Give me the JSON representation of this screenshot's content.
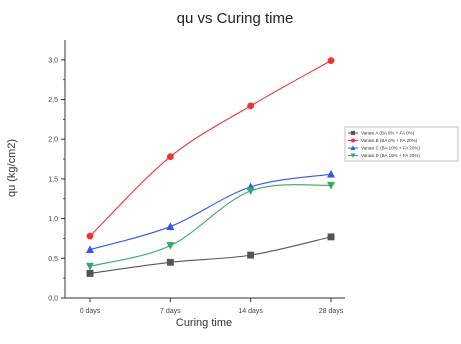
{
  "chart_data": {
    "type": "line",
    "title": "qu vs Curing time",
    "xlabel": "Curing time",
    "ylabel": "qu (kg/cm2)",
    "categories": [
      "0 days",
      "7 days",
      "14 days",
      "28 days"
    ],
    "ylim": [
      0,
      3.25
    ],
    "yticks": [
      "0,0",
      "0,5",
      "1,0",
      "1,5",
      "2,0",
      "2,5",
      "3,0"
    ],
    "ytick_values": [
      0,
      0.5,
      1.0,
      1.5,
      2.0,
      2.5,
      3.0
    ],
    "grid": false,
    "legend_position": "right",
    "series": [
      {
        "name": "Variasi A (BA 0% + FA 0%)",
        "values": [
          0.31,
          0.45,
          0.54,
          0.77
        ],
        "color": "#555555",
        "marker": "square"
      },
      {
        "name": "Variasi B (BA 0% + FA 20%)",
        "values": [
          0.78,
          1.78,
          2.42,
          2.99
        ],
        "color": "#ee3333",
        "marker": "circle"
      },
      {
        "name": "Variasi C (BA 10% + FA 20%)",
        "values": [
          0.61,
          0.9,
          1.4,
          1.56
        ],
        "color": "#3355ee",
        "marker": "triangle-up"
      },
      {
        "name": "Variasi D (BA 15% + FA 20%)",
        "values": [
          0.4,
          0.66,
          1.35,
          1.42
        ],
        "color": "#33aa66",
        "marker": "triangle-down"
      }
    ]
  }
}
